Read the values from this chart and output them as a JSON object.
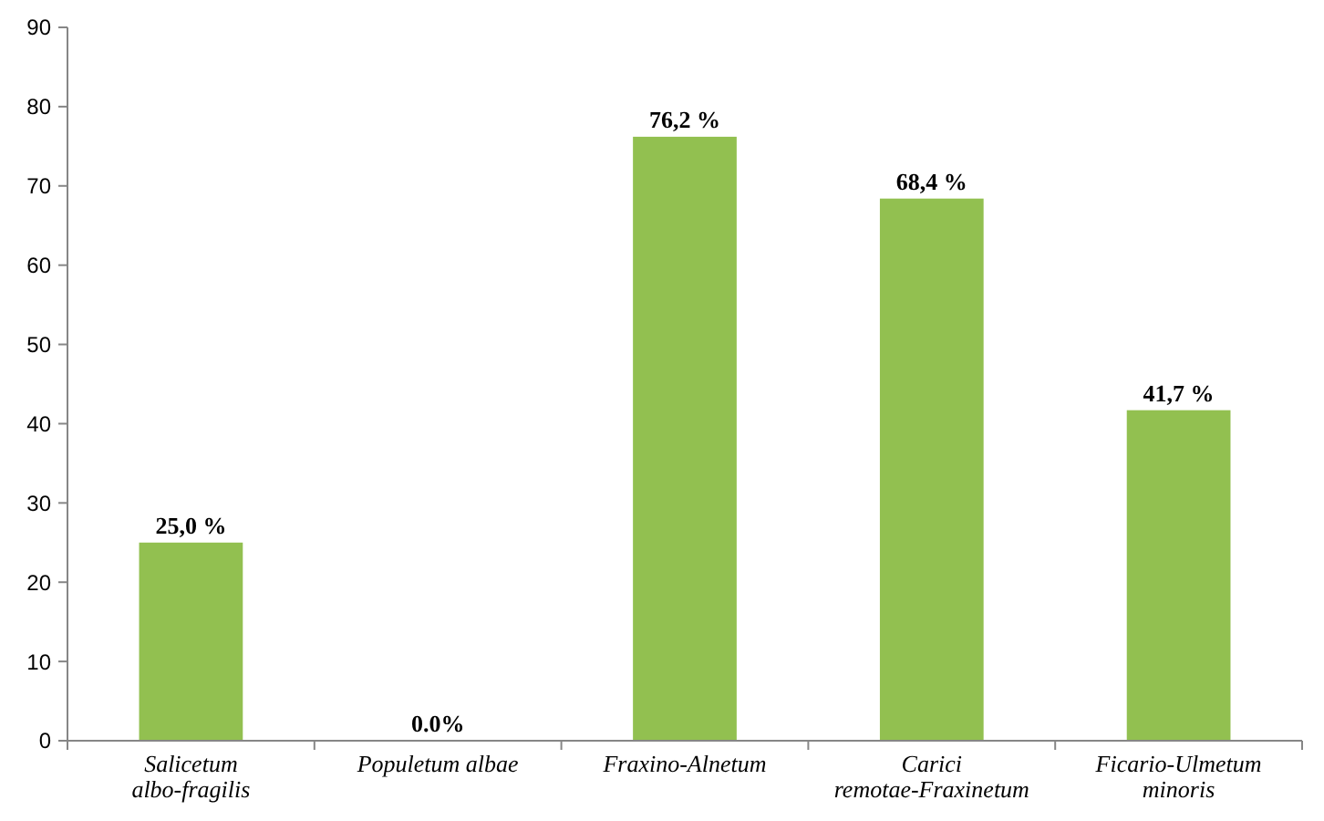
{
  "chart_data": {
    "type": "bar",
    "categories": [
      "Salicetum albo-fragilis",
      "Populetum albae",
      "Fraxino-Alnetum",
      "Carici remotae-Fraxinetum",
      "Ficario-Ulmetum minoris"
    ],
    "values": [
      25.0,
      0,
      76.2,
      68.4,
      41.7
    ],
    "value_labels": [
      "25,0 %",
      "0.0%",
      "76,2 %",
      "68,4 %",
      "41,7 %"
    ],
    "color": "#92c050",
    "ylim": [
      0,
      90
    ],
    "yticks": [
      0,
      10,
      20,
      30,
      40,
      50,
      60,
      70,
      80,
      90
    ],
    "grid": false
  }
}
